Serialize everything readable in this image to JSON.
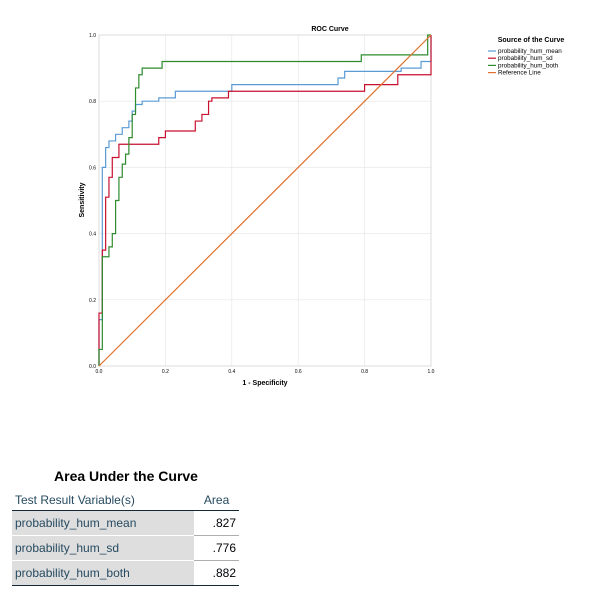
{
  "chart_data": {
    "type": "line",
    "title": "ROC Curve",
    "xlabel": "1 - Specificity",
    "ylabel": "Sensitivity",
    "xlim": [
      0,
      1
    ],
    "ylim": [
      0,
      1
    ],
    "xticks": [
      "0.0",
      "0.2",
      "0.4",
      "0.6",
      "0.8",
      "1.0"
    ],
    "yticks": [
      "0.0",
      "0.2",
      "0.4",
      "0.6",
      "0.8",
      "1.0"
    ],
    "grid": true,
    "legend": {
      "title": "Source of the Curve",
      "position": "top-right",
      "entries": [
        "probability_hum_mean",
        "probability_hum_sd",
        "probability_hum_both",
        "Reference Line"
      ]
    },
    "series": [
      {
        "name": "probability_hum_mean",
        "color": "#5b9bd5",
        "points": [
          [
            0,
            0
          ],
          [
            0,
            0.14
          ],
          [
            0.01,
            0.14
          ],
          [
            0.01,
            0.27
          ],
          [
            0.01,
            0.5
          ],
          [
            0.01,
            0.6
          ],
          [
            0.02,
            0.6
          ],
          [
            0.02,
            0.66
          ],
          [
            0.03,
            0.66
          ],
          [
            0.03,
            0.68
          ],
          [
            0.05,
            0.68
          ],
          [
            0.05,
            0.7
          ],
          [
            0.07,
            0.7
          ],
          [
            0.07,
            0.72
          ],
          [
            0.09,
            0.72
          ],
          [
            0.09,
            0.74
          ],
          [
            0.1,
            0.74
          ],
          [
            0.1,
            0.77
          ],
          [
            0.11,
            0.77
          ],
          [
            0.11,
            0.79
          ],
          [
            0.13,
            0.79
          ],
          [
            0.13,
            0.8
          ],
          [
            0.18,
            0.8
          ],
          [
            0.18,
            0.81
          ],
          [
            0.23,
            0.81
          ],
          [
            0.23,
            0.83
          ],
          [
            0.4,
            0.83
          ],
          [
            0.4,
            0.85
          ],
          [
            0.72,
            0.85
          ],
          [
            0.72,
            0.87
          ],
          [
            0.74,
            0.87
          ],
          [
            0.74,
            0.89
          ],
          [
            0.91,
            0.89
          ],
          [
            0.91,
            0.9
          ],
          [
            0.97,
            0.9
          ],
          [
            0.97,
            0.92
          ],
          [
            1,
            0.92
          ],
          [
            1,
            1
          ]
        ]
      },
      {
        "name": "probability_hum_sd",
        "color": "#c8102e",
        "points": [
          [
            0,
            0
          ],
          [
            0,
            0.16
          ],
          [
            0.01,
            0.16
          ],
          [
            0.01,
            0.35
          ],
          [
            0.02,
            0.35
          ],
          [
            0.02,
            0.51
          ],
          [
            0.03,
            0.51
          ],
          [
            0.03,
            0.57
          ],
          [
            0.04,
            0.57
          ],
          [
            0.04,
            0.63
          ],
          [
            0.06,
            0.63
          ],
          [
            0.06,
            0.67
          ],
          [
            0.18,
            0.67
          ],
          [
            0.18,
            0.69
          ],
          [
            0.2,
            0.69
          ],
          [
            0.2,
            0.71
          ],
          [
            0.29,
            0.71
          ],
          [
            0.29,
            0.74
          ],
          [
            0.31,
            0.74
          ],
          [
            0.31,
            0.76
          ],
          [
            0.33,
            0.76
          ],
          [
            0.33,
            0.8
          ],
          [
            0.34,
            0.8
          ],
          [
            0.34,
            0.81
          ],
          [
            0.39,
            0.81
          ],
          [
            0.39,
            0.83
          ],
          [
            0.8,
            0.83
          ],
          [
            0.8,
            0.85
          ],
          [
            0.9,
            0.85
          ],
          [
            0.9,
            0.88
          ],
          [
            1,
            0.88
          ],
          [
            1,
            1
          ]
        ]
      },
      {
        "name": "probability_hum_both",
        "color": "#2e8b2e",
        "points": [
          [
            0,
            0
          ],
          [
            0,
            0.05
          ],
          [
            0.01,
            0.05
          ],
          [
            0.01,
            0.33
          ],
          [
            0.03,
            0.33
          ],
          [
            0.03,
            0.36
          ],
          [
            0.04,
            0.36
          ],
          [
            0.04,
            0.4
          ],
          [
            0.05,
            0.4
          ],
          [
            0.05,
            0.5
          ],
          [
            0.06,
            0.5
          ],
          [
            0.06,
            0.57
          ],
          [
            0.07,
            0.57
          ],
          [
            0.07,
            0.61
          ],
          [
            0.08,
            0.61
          ],
          [
            0.08,
            0.64
          ],
          [
            0.09,
            0.64
          ],
          [
            0.09,
            0.69
          ],
          [
            0.1,
            0.69
          ],
          [
            0.1,
            0.76
          ],
          [
            0.11,
            0.76
          ],
          [
            0.11,
            0.84
          ],
          [
            0.12,
            0.84
          ],
          [
            0.12,
            0.88
          ],
          [
            0.13,
            0.88
          ],
          [
            0.13,
            0.9
          ],
          [
            0.19,
            0.9
          ],
          [
            0.19,
            0.92
          ],
          [
            0.79,
            0.92
          ],
          [
            0.79,
            0.94
          ],
          [
            0.99,
            0.94
          ],
          [
            0.99,
            1
          ],
          [
            1,
            1
          ]
        ]
      },
      {
        "name": "Reference Line",
        "color": "#e0702c",
        "points": [
          [
            0,
            0
          ],
          [
            1,
            1
          ]
        ]
      }
    ]
  },
  "auc_table": {
    "title": "Area Under the Curve",
    "col_variable": "Test Result Variable(s)",
    "col_area": "Area",
    "rows": [
      {
        "variable": "probability_hum_mean",
        "area": ".827"
      },
      {
        "variable": "probability_hum_sd",
        "area": ".776"
      },
      {
        "variable": "probability_hum_both",
        "area": ".882"
      }
    ]
  }
}
